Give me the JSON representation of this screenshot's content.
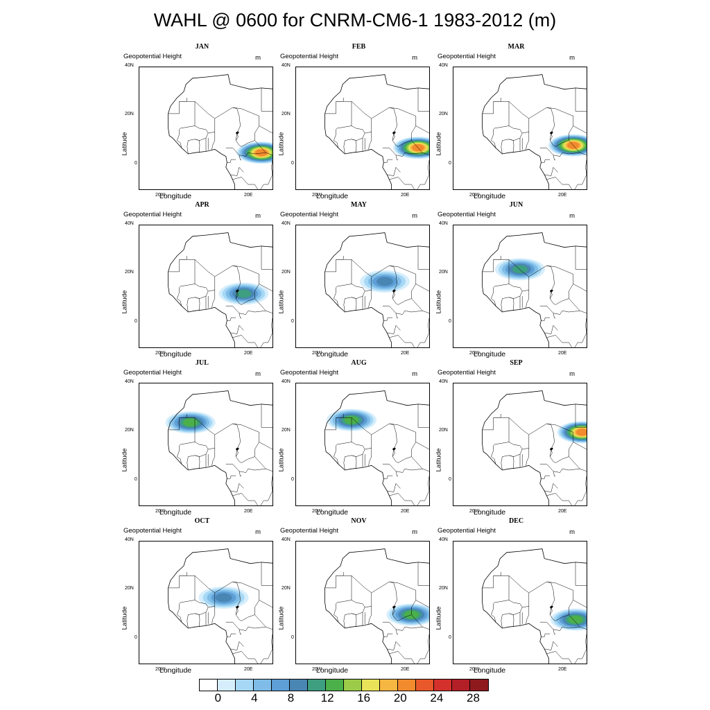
{
  "title": "WAHL @ 0600 for CNRM-CM6-1 1983-2012 (m)",
  "panel_common": {
    "variable": "Geopotential Height",
    "unit": "m",
    "x_label": "Longitude",
    "y_label": "Latitude",
    "lat_ticks": [
      "40N",
      "20N",
      "0"
    ],
    "lon_ticks": [
      "20W",
      "20E"
    ]
  },
  "chart_data": {
    "type": "heatmap",
    "region": {
      "lon_range": [
        -30,
        30
      ],
      "lat_range": [
        -10,
        40
      ]
    },
    "colorbar": {
      "levels": [
        0,
        2,
        4,
        6,
        8,
        10,
        12,
        14,
        16,
        18,
        20,
        22,
        24,
        26,
        28,
        30
      ],
      "labels": [
        "0",
        "4",
        "8",
        "12",
        "16",
        "20",
        "24",
        "28"
      ],
      "colors": [
        "#ffffff",
        "#d6eefc",
        "#a6d8f5",
        "#7fbde8",
        "#5d9fd6",
        "#4a86b4",
        "#3d9e80",
        "#4cb04a",
        "#9ccb49",
        "#e9e35a",
        "#f6b642",
        "#f28a2e",
        "#e8582a",
        "#d4302c",
        "#b31f27",
        "#8e1a1e"
      ]
    },
    "panels": [
      {
        "month": "JAN",
        "blobs": [
          {
            "lon": 25,
            "lat": 5,
            "value": 22
          }
        ]
      },
      {
        "month": "FEB",
        "blobs": [
          {
            "lon": 25,
            "lat": 7,
            "value": 22
          }
        ]
      },
      {
        "month": "MAR",
        "blobs": [
          {
            "lon": 24,
            "lat": 8,
            "value": 22
          }
        ]
      },
      {
        "month": "APR",
        "blobs": [
          {
            "lon": 17,
            "lat": 12,
            "value": 12
          }
        ]
      },
      {
        "month": "MAY",
        "blobs": [
          {
            "lon": 10,
            "lat": 17,
            "value": 10
          }
        ]
      },
      {
        "month": "JUN",
        "blobs": [
          {
            "lon": 0,
            "lat": 22,
            "value": 12
          }
        ]
      },
      {
        "month": "JUL",
        "blobs": [
          {
            "lon": -7,
            "lat": 24,
            "value": 14
          }
        ]
      },
      {
        "month": "AUG",
        "blobs": [
          {
            "lon": -5,
            "lat": 25,
            "value": 14
          }
        ]
      },
      {
        "month": "SEP",
        "blobs": [
          {
            "lon": 28,
            "lat": 20,
            "value": 22
          }
        ]
      },
      {
        "month": "OCT",
        "blobs": [
          {
            "lon": 8,
            "lat": 17,
            "value": 10
          }
        ]
      },
      {
        "month": "NOV",
        "blobs": [
          {
            "lon": 22,
            "lat": 10,
            "value": 14
          }
        ]
      },
      {
        "month": "DEC",
        "blobs": [
          {
            "lon": 25,
            "lat": 8,
            "value": 14
          }
        ]
      }
    ]
  }
}
